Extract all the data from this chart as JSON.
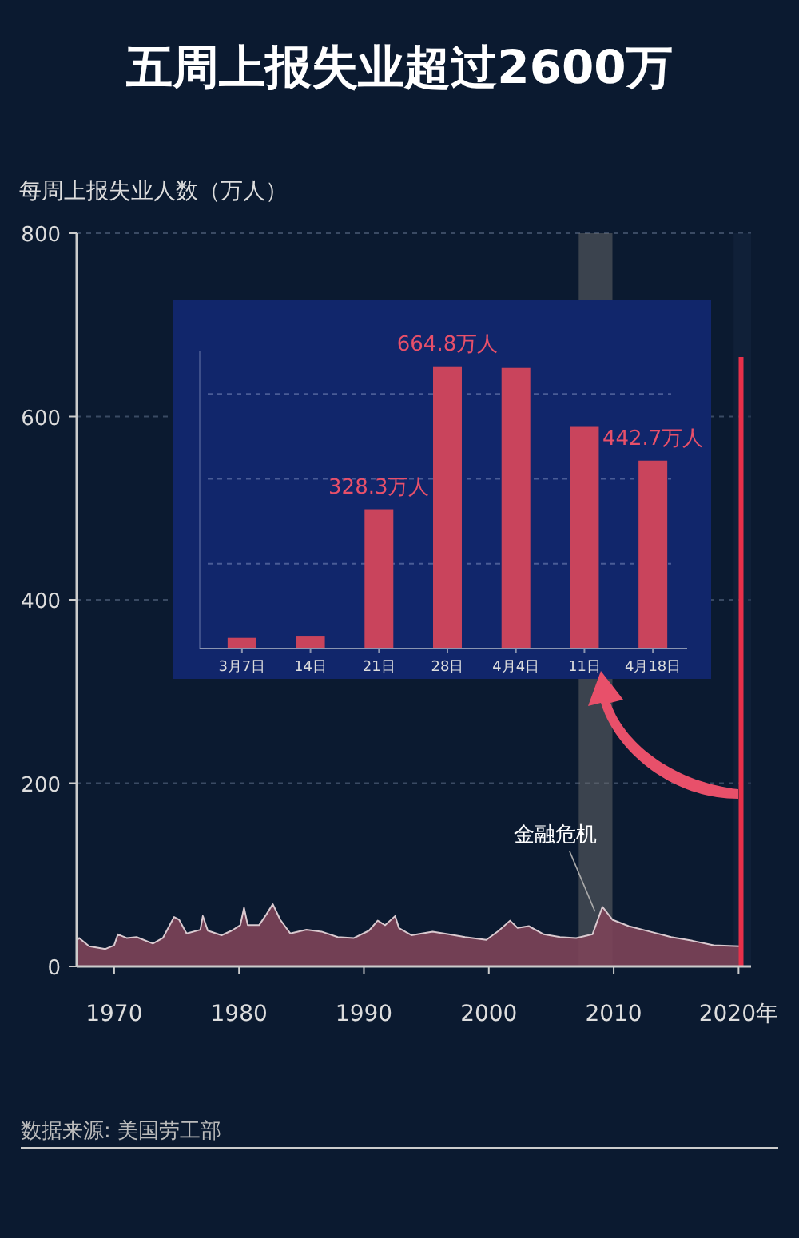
{
  "chart_data": [
    {
      "type": "area",
      "title": "五周上报失业超过2600万",
      "ylabel": "每周上报失业人数（万人）",
      "annotations": [
        {
          "text": "金融危机",
          "x": 2008.5,
          "y": 60
        },
        "数据来源: 美国劳工部"
      ],
      "series": [
        {
          "type": "area",
          "color": "#7d4459",
          "x": [
            1967.0,
            1967.2,
            1968,
            1969.3,
            1970,
            1970.3,
            1971,
            1971.8,
            1973.1,
            1973.9,
            1974.8,
            1975.2,
            1975.8,
            1976.9,
            1977.1,
            1977.5,
            1978.6,
            1979.4,
            1980.1,
            1980.4,
            1980.7,
            1981.6,
            1982.2,
            1982.7,
            1983.3,
            1984.1,
            1985.4,
            1986.6,
            1987.9,
            1989.2,
            1990.4,
            1991.1,
            1991.7,
            1992.5,
            1992.8,
            1993.8,
            1995.5,
            1996.8,
            1998.1,
            1999.8,
            2000.8,
            2001.7,
            2002.3,
            2003.2,
            2004.4,
            2005.7,
            2007.0,
            2008.3,
            2009.1,
            2009.9,
            2011.2,
            2012.9,
            2014.6,
            2016.3,
            2018.0,
            2020.1
          ],
          "values": [
            28,
            31,
            22,
            19,
            23,
            35,
            31,
            32,
            25,
            31,
            54,
            51,
            36,
            40,
            55,
            39,
            34,
            39,
            45,
            64,
            45,
            45,
            57,
            68,
            51,
            36,
            40,
            38,
            32,
            31,
            39,
            50,
            45,
            55,
            42,
            34,
            38,
            35,
            32,
            29,
            39,
            50,
            42,
            44,
            35,
            32,
            31,
            35,
            65,
            51,
            44,
            38,
            32,
            28,
            23,
            22
          ]
        },
        {
          "type": "line",
          "color": "#e8304a",
          "x": [
            2020.2,
            2020.2
          ],
          "values": [
            0,
            665
          ]
        }
      ],
      "xlim": [
        1967,
        2021
      ],
      "ylim": [
        0,
        800
      ],
      "xticks": [
        1970,
        1980,
        1990,
        2000,
        2010,
        {
          "value": 2020,
          "label": "2020年"
        }
      ],
      "yticks": [
        0,
        200,
        400,
        600,
        800
      ],
      "grid": "y",
      "bands": [
        {
          "axis": "x",
          "from": 2007.2,
          "to": 2009.9,
          "color": "#6b6b6b"
        },
        {
          "axis": "x",
          "from": 2019.6,
          "to": 2021,
          "color": "#15253f"
        }
      ]
    },
    {
      "type": "bar",
      "categories": [
        "3月7日",
        "14日",
        "21日",
        "28日",
        "4月4日",
        "11日",
        "4月18日"
      ],
      "values": [
        25,
        30,
        328.3,
        664.8,
        661,
        524,
        442.7
      ],
      "value_labels": [
        null,
        null,
        "328.3万人",
        "664.8万人",
        null,
        null,
        "442.7万人"
      ],
      "color": "#c9445c",
      "ylim": [
        0,
        700
      ],
      "yticks": [
        {
          "value": 200,
          "label": null
        },
        {
          "value": 400,
          "label": null
        },
        {
          "value": 600,
          "label": null
        }
      ],
      "grid": "y",
      "tick_labels": "x"
    }
  ]
}
